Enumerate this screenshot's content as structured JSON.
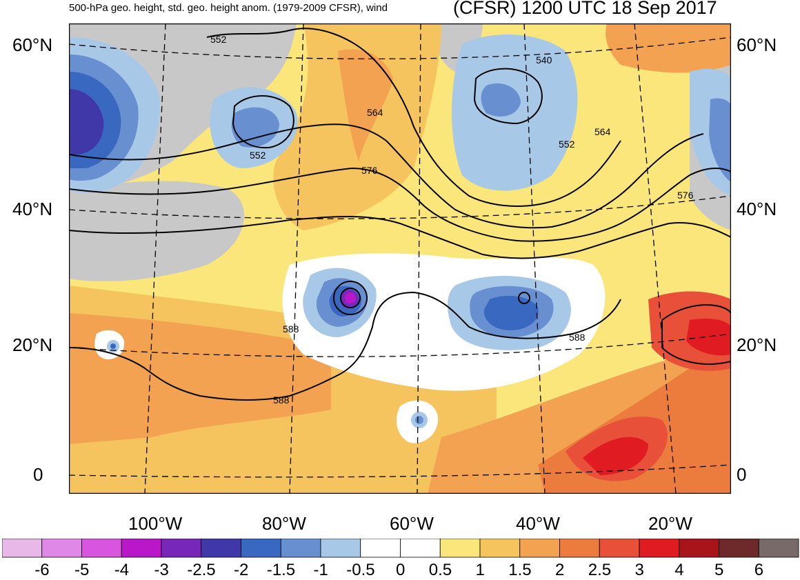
{
  "titles": {
    "left": "500-hPa geo. height, std. geo. height anom. (1979-2009 CFSR), wind",
    "right": "(CFSR) 1200 UTC 18 Sep 2017"
  },
  "lat_labels": [
    "60°N",
    "40°N",
    "20°N",
    "0"
  ],
  "lon_labels": [
    "100°W",
    "80°W",
    "60°W",
    "40°W",
    "20°W"
  ],
  "contour_labels": [
    "552",
    "564",
    "552",
    "576",
    "540",
    "552",
    "564",
    "576",
    "588",
    "588",
    "588"
  ],
  "colorbar": {
    "labels": [
      "-6",
      "-5",
      "-4",
      "-3",
      "-2.5",
      "-2",
      "-1.5",
      "-1",
      "-0.5",
      "0",
      "0.5",
      "1",
      "1.5",
      "2",
      "2.5",
      "3",
      "4",
      "5",
      "6"
    ],
    "colors": [
      "#e8b8e8",
      "#e088e8",
      "#d855e0",
      "#b818c8",
      "#7828b8",
      "#4038a8",
      "#3868c0",
      "#6890d0",
      "#a8c8e8",
      "#ffffff",
      "#ffffff",
      "#fae67a",
      "#f5c45e",
      "#f2a250",
      "#ec7c3e",
      "#e8503a",
      "#e01c22",
      "#a8141a",
      "#6e2a2a",
      "#786a68"
    ]
  },
  "colors": {
    "land_masked": "#c8c8c8",
    "neg_light": "#a8c8e8",
    "neg_mid": "#6890d0",
    "neg_strong": "#3868c0",
    "neg_deep": "#4038a8",
    "pos_light": "#fae67a",
    "pos_mid": "#f5c45e",
    "pos_strong": "#f2a250",
    "pos_high": "#ec7c3e",
    "pos_very": "#e8503a",
    "pos_max": "#e01c22"
  }
}
